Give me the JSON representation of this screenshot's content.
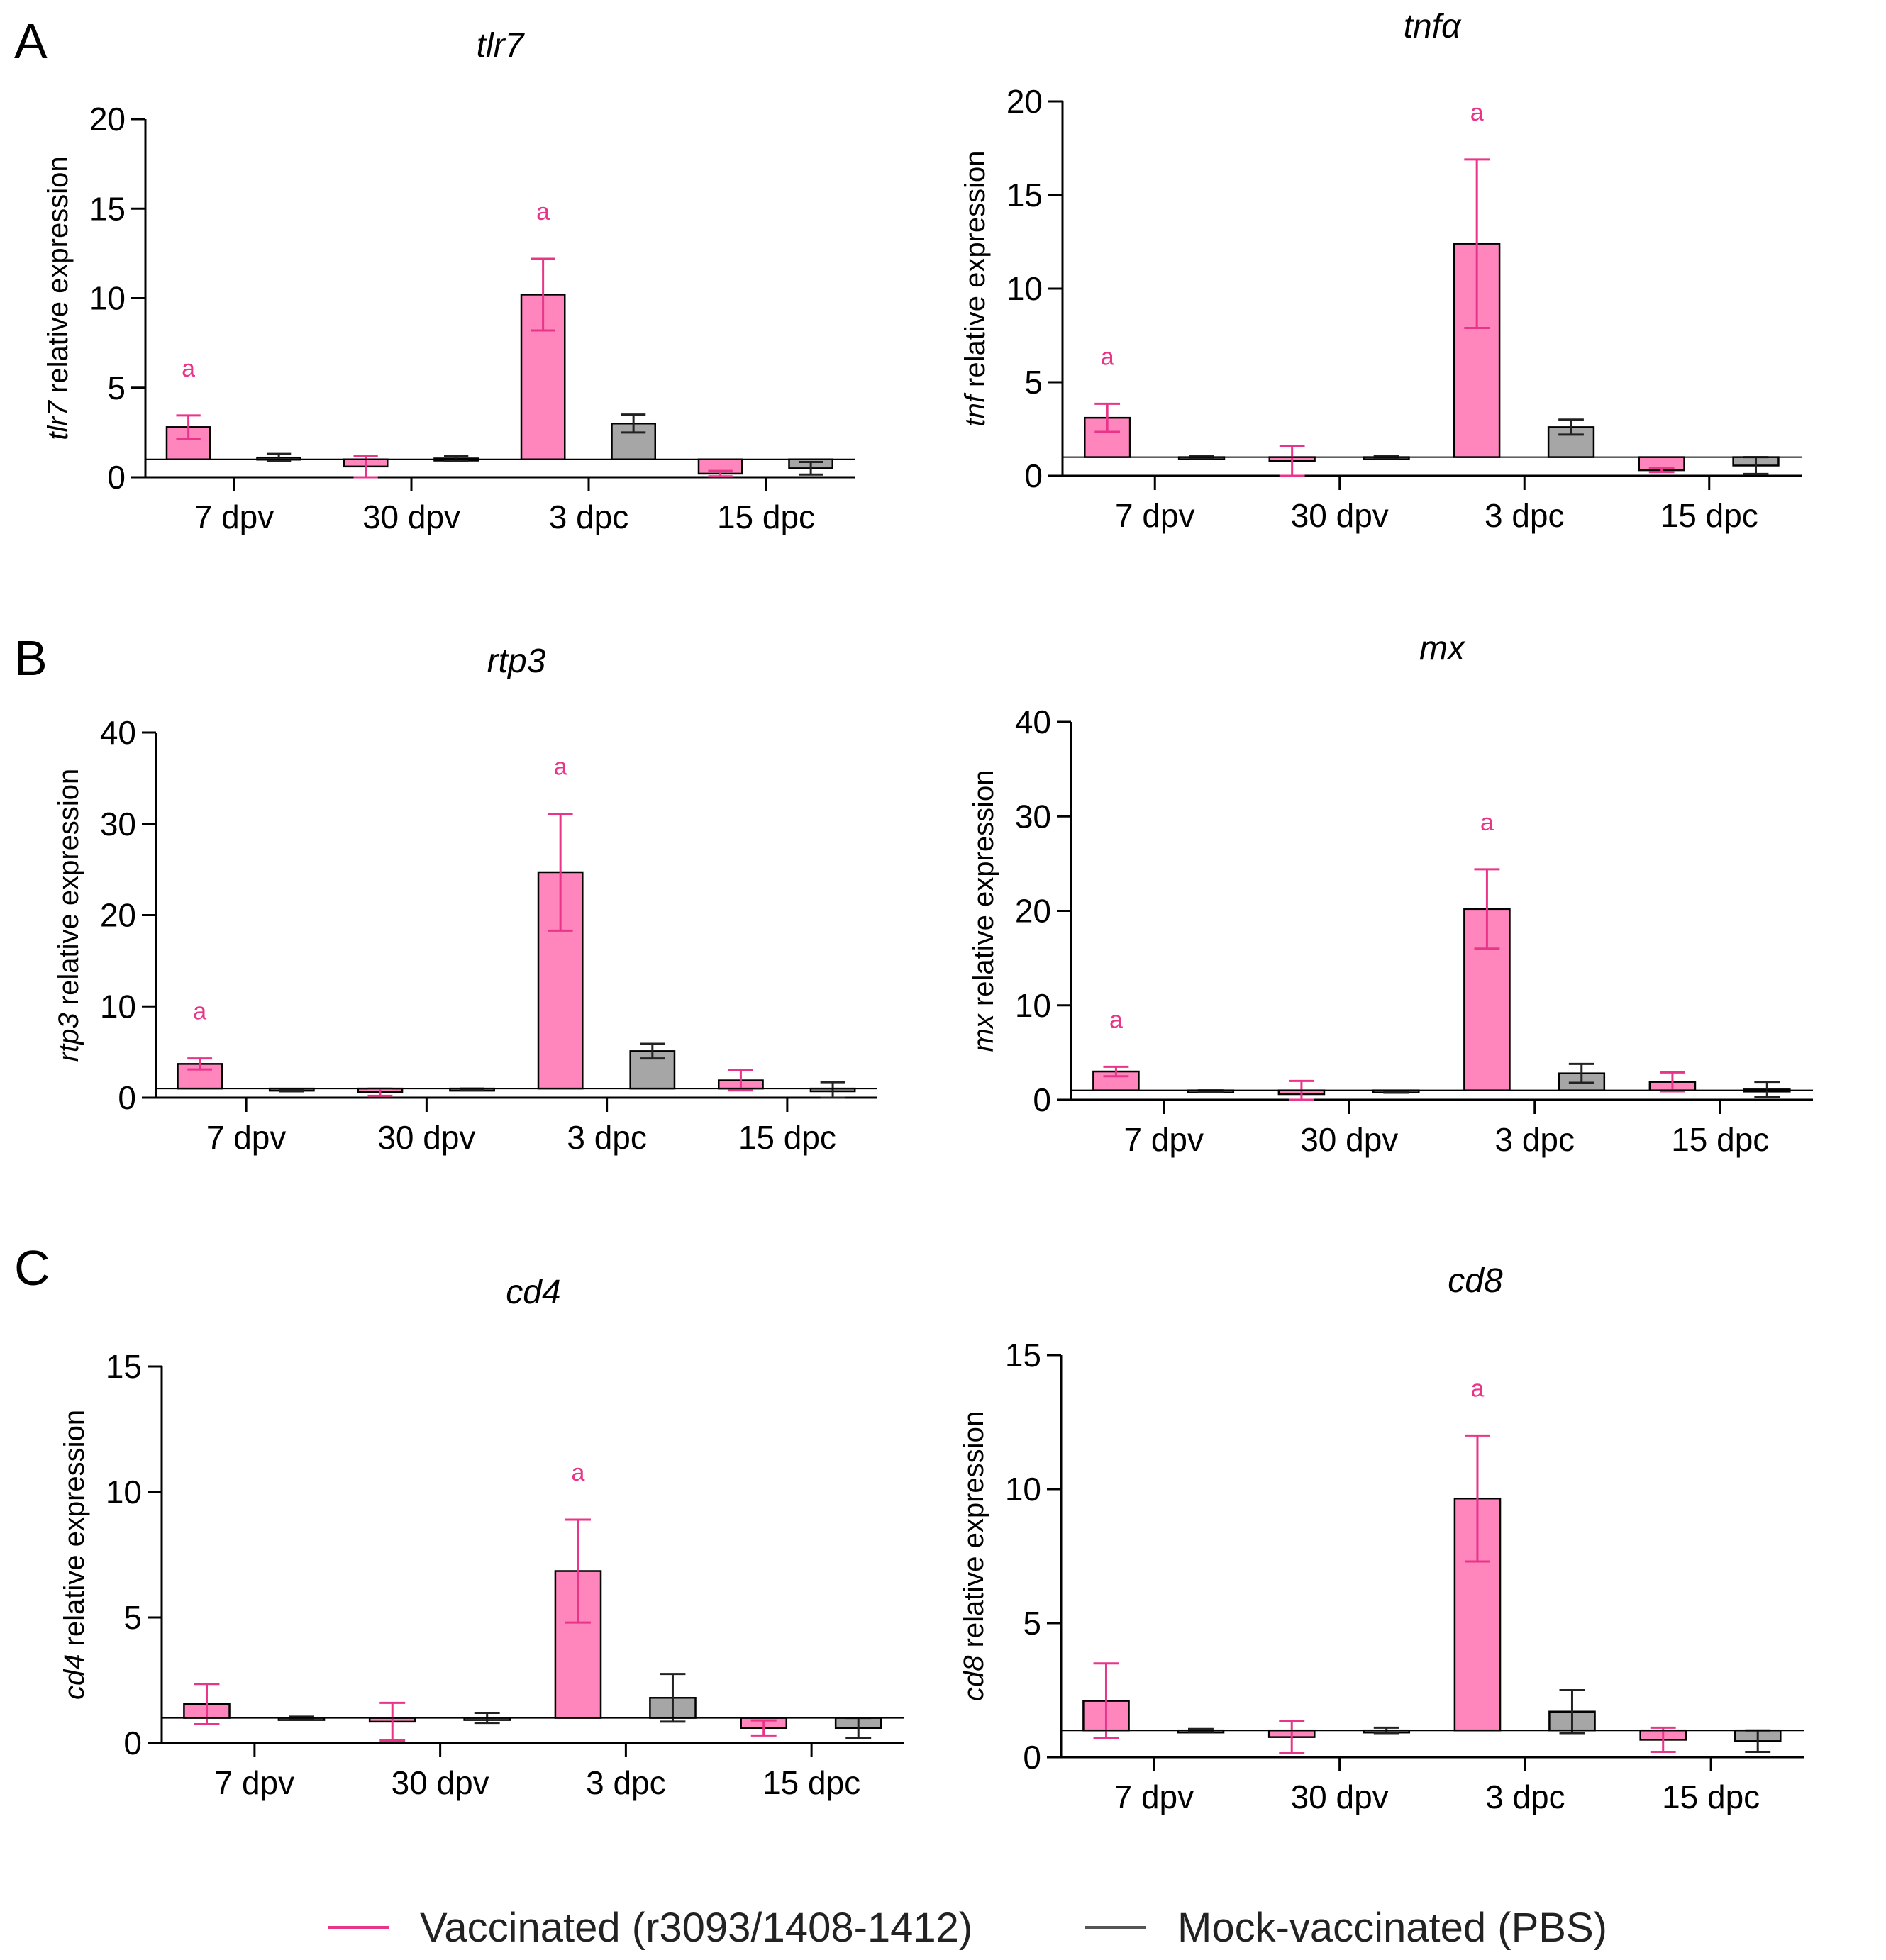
{
  "colors": {
    "vaccinated_fill": "#ff85bd",
    "vaccinated_error": "#e8358a",
    "mock_fill": "#a6a6a6",
    "mock_error": "#222222",
    "significance": "#e8358a"
  },
  "panels": [
    {
      "label": "A"
    },
    {
      "label": "B"
    },
    {
      "label": "C"
    }
  ],
  "legend": {
    "items": [
      {
        "label": "Vaccinated (r3093/1408-1412)",
        "color": "#e8358a"
      },
      {
        "label": "Mock-vaccinated (PBS)",
        "color": "#555555"
      }
    ]
  },
  "chart_data": [
    {
      "type": "bar",
      "panel": "A",
      "title": "tlr7",
      "ylabel_italic": "tlr7",
      "ylabel_rest": "relative expression",
      "ylim": [
        0,
        20
      ],
      "yticks": [
        0,
        5,
        10,
        15,
        20
      ],
      "baseline": 1,
      "categories": [
        "7 dpv",
        "30 dpv",
        "3 dpc",
        "15 dpc"
      ],
      "series": [
        {
          "name": "Vaccinated (r3093/1408-1412)",
          "values": [
            2.8,
            0.6,
            10.2,
            0.2
          ],
          "errors": [
            0.65,
            0.6,
            2.0,
            0.15
          ]
        },
        {
          "name": "Mock-vaccinated (PBS)",
          "values": [
            1.1,
            1.05,
            3.0,
            0.5
          ],
          "errors": [
            0.2,
            0.15,
            0.5,
            0.35
          ]
        }
      ],
      "significance": [
        "a",
        "",
        "a",
        ""
      ]
    },
    {
      "type": "bar",
      "panel": "A",
      "title": "tnfα",
      "ylabel_italic": "tnf",
      "ylabel_rest": "relative expression",
      "ylim": [
        0,
        20
      ],
      "yticks": [
        0,
        5,
        10,
        15,
        20
      ],
      "baseline": 1,
      "categories": [
        "7 dpv",
        "30 dpv",
        "3 dpc",
        "15 dpc"
      ],
      "series": [
        {
          "name": "Vaccinated (r3093/1408-1412)",
          "values": [
            3.1,
            0.8,
            12.4,
            0.3
          ],
          "errors": [
            0.75,
            0.8,
            4.5,
            0.1
          ]
        },
        {
          "name": "Mock-vaccinated (PBS)",
          "values": [
            1.0,
            1.0,
            2.6,
            0.55
          ],
          "errors": [
            0.05,
            0.05,
            0.4,
            0.45
          ]
        }
      ],
      "significance": [
        "a",
        "",
        "a",
        ""
      ]
    },
    {
      "type": "bar",
      "panel": "B",
      "title": "rtp3",
      "ylabel_italic": "rtp3",
      "ylabel_rest": "relative expression",
      "ylim": [
        0,
        40
      ],
      "yticks": [
        0,
        10,
        20,
        30,
        40
      ],
      "baseline": 1,
      "categories": [
        "7 dpv",
        "30 dpv",
        "3 dpc",
        "15 dpc"
      ],
      "series": [
        {
          "name": "Vaccinated (r3093/1408-1412)",
          "values": [
            3.7,
            0.6,
            24.7,
            1.9
          ],
          "errors": [
            0.6,
            0.4,
            6.4,
            1.1
          ]
        },
        {
          "name": "Mock-vaccinated (PBS)",
          "values": [
            0.8,
            0.9,
            5.1,
            0.7
          ],
          "errors": [
            0.1,
            0.1,
            0.8,
            1.0
          ]
        }
      ],
      "significance": [
        "a",
        "",
        "a",
        ""
      ]
    },
    {
      "type": "bar",
      "panel": "B",
      "title": "mx",
      "ylabel_italic": "mx",
      "ylabel_rest": "relative expression",
      "ylim": [
        0,
        40
      ],
      "yticks": [
        0,
        10,
        20,
        30,
        40
      ],
      "baseline": 1,
      "categories": [
        "7 dpv",
        "30 dpv",
        "3 dpc",
        "15 dpc"
      ],
      "series": [
        {
          "name": "Vaccinated (r3093/1408-1412)",
          "values": [
            3.0,
            0.6,
            20.2,
            1.9
          ],
          "errors": [
            0.5,
            1.4,
            4.2,
            1.0
          ]
        },
        {
          "name": "Mock-vaccinated (PBS)",
          "values": [
            0.9,
            0.85,
            2.8,
            1.1
          ],
          "errors": [
            0.1,
            0.1,
            1.0,
            0.8
          ]
        }
      ],
      "significance": [
        "a",
        "",
        "a",
        ""
      ]
    },
    {
      "type": "bar",
      "panel": "C",
      "title": "cd4",
      "ylabel_italic": "cd4",
      "ylabel_rest": "relative expression",
      "ylim": [
        0,
        15
      ],
      "yticks": [
        0,
        5,
        10,
        15
      ],
      "baseline": 1,
      "categories": [
        "7 dpv",
        "30 dpv",
        "3 dpc",
        "15 dpc"
      ],
      "series": [
        {
          "name": "Vaccinated (r3093/1408-1412)",
          "values": [
            1.55,
            0.85,
            6.85,
            0.6
          ],
          "errors": [
            0.8,
            0.75,
            2.05,
            0.3
          ]
        },
        {
          "name": "Mock-vaccinated (PBS)",
          "values": [
            1.0,
            1.0,
            1.8,
            0.6
          ],
          "errors": [
            0.05,
            0.2,
            0.95,
            0.4
          ]
        }
      ],
      "significance": [
        "",
        "",
        "a",
        ""
      ]
    },
    {
      "type": "bar",
      "panel": "C",
      "title": "cd8",
      "ylabel_italic": "cd8",
      "ylabel_rest": "relative expression",
      "ylim": [
        0,
        15
      ],
      "yticks": [
        0,
        5,
        10,
        15
      ],
      "baseline": 1,
      "categories": [
        "7 dpv",
        "30 dpv",
        "3 dpc",
        "15 dpc"
      ],
      "series": [
        {
          "name": "Vaccinated (r3093/1408-1412)",
          "values": [
            2.1,
            0.75,
            9.65,
            0.65
          ],
          "errors": [
            1.4,
            0.6,
            2.35,
            0.45
          ]
        },
        {
          "name": "Mock-vaccinated (PBS)",
          "values": [
            1.0,
            1.0,
            1.7,
            0.6
          ],
          "errors": [
            0.05,
            0.1,
            0.8,
            0.4
          ]
        }
      ],
      "significance": [
        "",
        "",
        "a",
        ""
      ]
    }
  ]
}
